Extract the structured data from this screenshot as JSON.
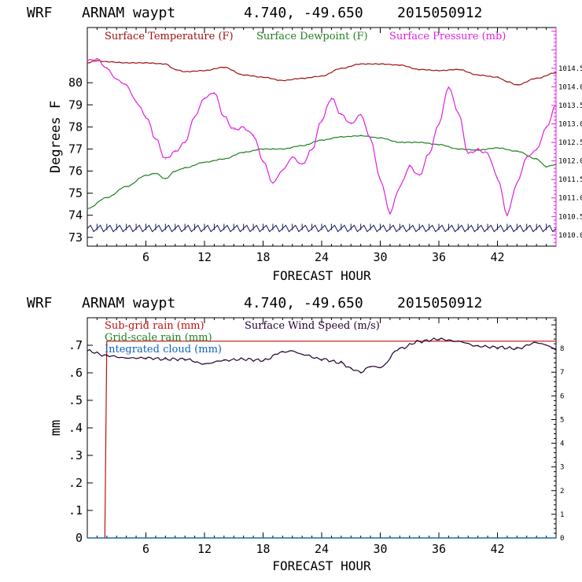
{
  "chart_data": [
    {
      "type": "line",
      "header": {
        "model": "WRF",
        "station": "ARNAM waypt",
        "coords": "4.740, -49.650",
        "init": "2015050912"
      },
      "xlabel": "FORECAST HOUR",
      "ylabel": "Degrees F",
      "xlim": [
        0,
        48
      ],
      "x_ticks": [
        6,
        12,
        18,
        24,
        30,
        36,
        42
      ],
      "ylim": [
        72.6,
        82.5
      ],
      "y_ticks": [
        73,
        74,
        75,
        76,
        77,
        78,
        79,
        80
      ],
      "y2lim": [
        1009.7,
        1015.6
      ],
      "y2_tick_labels": [
        "1010.0",
        "1010.5",
        "1011.0",
        "1011.5",
        "1012.0",
        "1012.5",
        "1013.0",
        "1013.5",
        "1014.0",
        "1014.5"
      ],
      "series": [
        {
          "name": "Surface Temperature (F)",
          "axis": "left",
          "color": "#a01010",
          "x": [
            0,
            1,
            2,
            4,
            6,
            8,
            9,
            10,
            12,
            14,
            16,
            18,
            20,
            22,
            24,
            26,
            28,
            30,
            32,
            34,
            36,
            38,
            40,
            42,
            43,
            44,
            46,
            48
          ],
          "values": [
            80.9,
            81.0,
            80.95,
            80.9,
            80.9,
            80.85,
            80.6,
            80.5,
            80.55,
            80.7,
            80.35,
            80.25,
            80.1,
            80.2,
            80.3,
            80.65,
            80.85,
            80.85,
            80.8,
            80.6,
            80.55,
            80.6,
            80.35,
            80.25,
            80.05,
            79.9,
            80.2,
            80.45
          ]
        },
        {
          "name": "Surface Dewpoint (F)",
          "axis": "left",
          "color": "#208020",
          "x": [
            0,
            2,
            4,
            6,
            7,
            8,
            9,
            10,
            12,
            14,
            16,
            18,
            20,
            22,
            24,
            26,
            28,
            30,
            32,
            34,
            36,
            38,
            40,
            42,
            44,
            46,
            47,
            48
          ],
          "values": [
            74.3,
            74.8,
            75.3,
            75.8,
            75.9,
            75.65,
            76.0,
            76.15,
            76.4,
            76.55,
            76.85,
            77.0,
            77.0,
            77.15,
            77.4,
            77.55,
            77.6,
            77.5,
            77.3,
            77.3,
            77.2,
            77.0,
            76.95,
            77.05,
            76.9,
            76.55,
            76.2,
            76.3
          ]
        },
        {
          "name": "Surface Pressure (mb)",
          "axis": "right",
          "color": "#e020e0",
          "x": [
            0,
            1,
            2,
            3,
            4,
            5,
            6,
            7,
            8,
            9,
            10,
            11,
            12,
            13,
            14,
            15,
            16,
            17,
            18,
            19,
            20,
            21,
            22,
            23,
            24,
            25,
            26,
            27,
            28,
            29,
            30,
            31,
            32,
            33,
            34,
            35,
            36,
            37,
            38,
            39,
            40,
            41,
            42,
            43,
            44,
            45,
            46,
            47,
            48
          ],
          "values": [
            1014.7,
            1014.75,
            1014.5,
            1014.2,
            1014.05,
            1013.6,
            1013.2,
            1012.6,
            1012.05,
            1012.25,
            1012.5,
            1013.2,
            1013.7,
            1013.85,
            1013.2,
            1012.85,
            1012.9,
            1012.7,
            1012.0,
            1011.4,
            1011.75,
            1012.1,
            1011.9,
            1012.3,
            1013.1,
            1013.7,
            1013.25,
            1013.0,
            1013.25,
            1012.6,
            1011.5,
            1010.6,
            1011.3,
            1011.85,
            1011.6,
            1012.2,
            1013.0,
            1014.0,
            1013.3,
            1012.2,
            1012.3,
            1012.2,
            1011.55,
            1010.55,
            1011.4,
            1012.1,
            1012.3,
            1012.9,
            1013.5
          ]
        }
      ],
      "markers": {
        "name": "wind barbs",
        "y": 73.4,
        "count": 48,
        "color": "#1a1a60"
      }
    },
    {
      "type": "line",
      "header": {
        "model": "WRF",
        "station": "ARNAM waypt",
        "coords": "4.740, -49.650",
        "init": "2015050912"
      },
      "xlabel": "FORECAST HOUR",
      "ylabel": "mm",
      "xlim": [
        0,
        48
      ],
      "x_ticks": [
        6,
        12,
        18,
        24,
        30,
        36,
        42
      ],
      "ylim": [
        0,
        0.8
      ],
      "y_ticks": [
        0,
        0.1,
        0.2,
        0.3,
        0.4,
        0.5,
        0.6,
        0.7
      ],
      "y_tick_labels": [
        "0",
        ".1",
        ".2",
        ".3",
        ".4",
        ".5",
        ".6",
        ".7"
      ],
      "y2lim": [
        0,
        9.3
      ],
      "y2_ticks": [
        0,
        1,
        2,
        3,
        4,
        5,
        6,
        7,
        8
      ],
      "series": [
        {
          "name": "Sub-grid rain (mm)",
          "axis": "left",
          "color": "#c01010",
          "x": [
            1.8,
            2.0,
            48
          ],
          "values": [
            0,
            0.715,
            0.715
          ]
        },
        {
          "name": "Grid-scale rain (mm)",
          "axis": "left",
          "color": "#208020",
          "x": [
            0,
            48
          ],
          "values": [
            0,
            0
          ]
        },
        {
          "name": "Integrated cloud (mm)",
          "axis": "left",
          "color": "#1060c0",
          "x": [
            0,
            48
          ],
          "values": [
            0,
            0
          ]
        },
        {
          "name": "Surface Wind Speed (m/s)",
          "axis": "right",
          "color": "#200030",
          "x": [
            0,
            2,
            4,
            6,
            8,
            10,
            12,
            14,
            16,
            18,
            20,
            21,
            22,
            24,
            26,
            27,
            28,
            29,
            30,
            32,
            34,
            36,
            38,
            40,
            42,
            44,
            46,
            47,
            48
          ],
          "values": [
            7.9,
            7.7,
            7.6,
            7.6,
            7.55,
            7.55,
            7.35,
            7.5,
            7.55,
            7.5,
            7.85,
            7.9,
            7.75,
            7.55,
            7.4,
            7.15,
            7.0,
            7.25,
            7.2,
            8.0,
            8.3,
            8.4,
            8.3,
            8.1,
            8.05,
            8.0,
            8.25,
            8.15,
            7.95
          ]
        }
      ]
    }
  ]
}
